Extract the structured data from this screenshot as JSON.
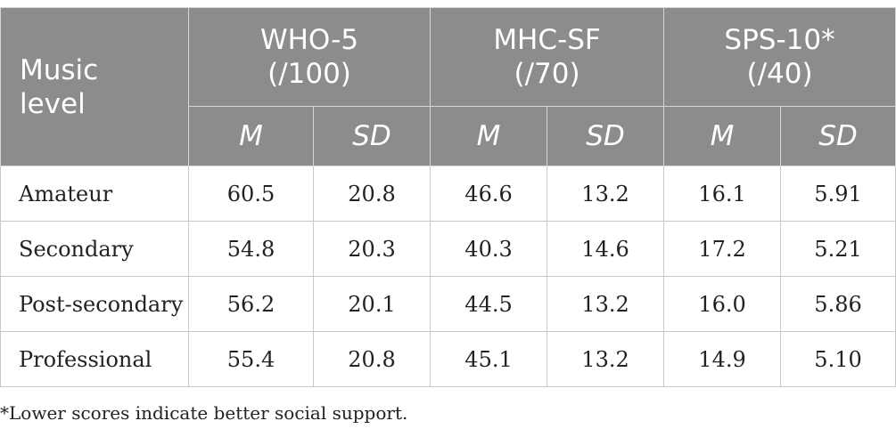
{
  "table": {
    "header": {
      "row_label": [
        "Music",
        "level"
      ],
      "groups": [
        {
          "name": "WHO-5",
          "range": "(/100)"
        },
        {
          "name": "MHC-SF",
          "range": "(/70)"
        },
        {
          "name": "SPS-10*",
          "range": "(/40)"
        }
      ],
      "subheaders": [
        "M",
        "SD",
        "M",
        "SD",
        "M",
        "SD"
      ]
    },
    "rows": [
      {
        "label": "Amateur",
        "cells": [
          "60.5",
          "20.8",
          "46.6",
          "13.2",
          "16.1",
          "5.91"
        ]
      },
      {
        "label": "Secondary",
        "cells": [
          "54.8",
          "20.3",
          "40.3",
          "14.6",
          "17.2",
          "5.21"
        ]
      },
      {
        "label": "Post-secondary",
        "cells": [
          "56.2",
          "20.1",
          "44.5",
          "13.2",
          "16.0",
          "5.86"
        ]
      },
      {
        "label": "Professional",
        "cells": [
          "55.4",
          "20.8",
          "45.1",
          "13.2",
          "14.9",
          "5.10"
        ]
      }
    ]
  },
  "footnote": "*Lower scores indicate better social support.",
  "colors": {
    "header_bg": "#8c8c8c",
    "header_text": "#ffffff",
    "body_text": "#222222",
    "border": "#c8c8c8"
  }
}
